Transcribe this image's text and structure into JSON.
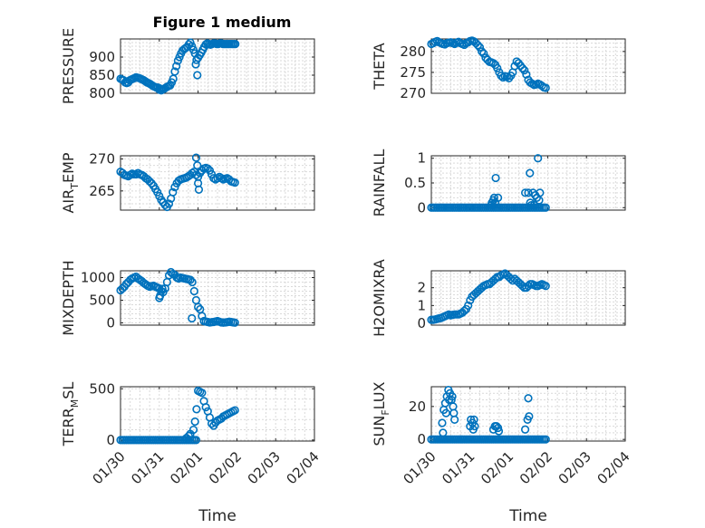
{
  "figure_title": "Figure 1 medium",
  "colors": {
    "marker": "#0072BD",
    "axis": "#262626",
    "grid": "#d9d9d9"
  },
  "chart_data": [
    {
      "type": "scatter",
      "name": "pressure",
      "ylabel": "PRESSURE",
      "xlabel": "",
      "xlim": [
        0,
        5
      ],
      "ylim": [
        800,
        950
      ],
      "yticks": [
        800,
        850,
        900
      ],
      "ytick_labels": [
        "800",
        "850",
        "900"
      ],
      "xticks": [
        0,
        1,
        2,
        3,
        4,
        5
      ],
      "xtick_labels": [],
      "x": [
        0,
        0.04,
        0.08,
        0.12,
        0.16,
        0.2,
        0.24,
        0.28,
        0.32,
        0.36,
        0.4,
        0.44,
        0.48,
        0.52,
        0.56,
        0.6,
        0.64,
        0.68,
        0.72,
        0.76,
        0.8,
        0.84,
        0.88,
        0.92,
        0.96,
        1.0,
        1.04,
        1.08,
        1.12,
        1.16,
        1.2,
        1.24,
        1.28,
        1.32,
        1.36,
        1.4,
        1.44,
        1.48,
        1.52,
        1.56,
        1.6,
        1.64,
        1.68,
        1.72,
        1.76,
        1.8,
        1.84,
        1.88,
        1.92,
        1.96,
        2.0,
        2.04,
        2.08,
        2.12,
        2.16,
        2.2,
        2.24,
        2.28,
        2.32,
        2.36,
        2.4,
        2.44,
        2.48,
        2.52,
        2.56,
        2.6,
        2.64,
        2.68,
        2.72,
        2.76,
        2.8,
        2.84,
        2.88,
        2.92,
        2.96,
        1.94,
        1.98,
        1.0,
        1.05
      ],
      "y": [
        840,
        838,
        836,
        830,
        828,
        830,
        836,
        838,
        840,
        842,
        844,
        843,
        842,
        840,
        838,
        836,
        833,
        830,
        828,
        826,
        823,
        820,
        818,
        816,
        816,
        814,
        812,
        810,
        812,
        815,
        818,
        820,
        822,
        830,
        840,
        860,
        875,
        890,
        900,
        910,
        918,
        922,
        925,
        928,
        935,
        940,
        930,
        920,
        910,
        892,
        898,
        905,
        912,
        920,
        928,
        935,
        938,
        936,
        934,
        936,
        938,
        938,
        936,
        936,
        938,
        938,
        936,
        936,
        936,
        936,
        936,
        936,
        936,
        936,
        936,
        880,
        850,
        810,
        808
      ]
    },
    {
      "type": "scatter",
      "name": "theta",
      "ylabel": "THETA",
      "xlabel": "",
      "xlim": [
        0,
        5
      ],
      "ylim": [
        270,
        283
      ],
      "yticks": [
        270,
        275,
        280
      ],
      "ytick_labels": [
        "270",
        "275",
        "280"
      ],
      "xticks": [
        0,
        1,
        2,
        3,
        4,
        5
      ],
      "xtick_labels": [],
      "x": [
        0,
        0.05,
        0.1,
        0.15,
        0.2,
        0.25,
        0.3,
        0.35,
        0.4,
        0.45,
        0.5,
        0.55,
        0.6,
        0.65,
        0.7,
        0.75,
        0.8,
        0.85,
        0.9,
        0.95,
        1.0,
        1.05,
        1.1,
        1.15,
        1.2,
        1.25,
        1.3,
        1.35,
        1.4,
        1.45,
        1.5,
        1.55,
        1.6,
        1.65,
        1.7,
        1.75,
        1.8,
        1.85,
        1.9,
        1.95,
        2.0,
        2.05,
        2.1,
        2.15,
        2.2,
        2.25,
        2.3,
        2.35,
        2.4,
        2.45,
        2.5,
        2.55,
        2.6,
        2.65,
        2.7,
        2.75,
        2.8,
        2.85,
        2.9,
        2.95
      ],
      "y": [
        281.8,
        282.0,
        282.3,
        282.5,
        282.2,
        282.0,
        281.8,
        281.7,
        282.0,
        282.1,
        282.2,
        282.0,
        281.8,
        282.1,
        282.3,
        282.0,
        281.8,
        281.6,
        282.0,
        282.2,
        282.5,
        282.6,
        282.4,
        282.0,
        281.5,
        281.0,
        280.0,
        279.5,
        278.5,
        278.0,
        277.5,
        277.4,
        277.2,
        276.8,
        276.0,
        275.0,
        274.2,
        273.8,
        274.1,
        274.0,
        273.6,
        274.2,
        275.0,
        276.5,
        277.6,
        277.2,
        276.6,
        276.0,
        275.5,
        274.5,
        273.2,
        272.6,
        272.3,
        272.0,
        272.1,
        272.3,
        272.1,
        271.8,
        271.4,
        271.3
      ]
    },
    {
      "type": "scatter",
      "name": "air-temp",
      "ylabel": "AIR_TEMP",
      "ylabel_main": "AIR",
      "ylabel_sub": "T",
      "ylabel_tail": "EMP",
      "xlabel": "",
      "xlim": [
        0,
        5
      ],
      "ylim": [
        262,
        270.5
      ],
      "yticks": [
        265,
        270
      ],
      "ytick_labels": [
        "265",
        "270"
      ],
      "xticks": [
        0,
        1,
        2,
        3,
        4,
        5
      ],
      "xtick_labels": [],
      "x": [
        0,
        0.05,
        0.1,
        0.15,
        0.2,
        0.25,
        0.3,
        0.35,
        0.4,
        0.45,
        0.5,
        0.55,
        0.6,
        0.65,
        0.7,
        0.75,
        0.8,
        0.85,
        0.9,
        0.95,
        1.0,
        1.05,
        1.1,
        1.15,
        1.2,
        1.25,
        1.3,
        1.35,
        1.4,
        1.45,
        1.5,
        1.55,
        1.6,
        1.65,
        1.7,
        1.75,
        1.8,
        1.85,
        1.9,
        1.95,
        2.0,
        2.05,
        2.1,
        2.15,
        2.2,
        2.25,
        2.3,
        2.35,
        2.4,
        2.45,
        2.5,
        2.55,
        2.6,
        2.65,
        2.7,
        2.75,
        2.8,
        2.85,
        2.9,
        2.95,
        1.95,
        1.98,
        2.0,
        2.02
      ],
      "y": [
        268.0,
        267.8,
        267.5,
        267.4,
        267.3,
        267.5,
        267.7,
        267.6,
        267.6,
        267.8,
        267.6,
        267.5,
        267.3,
        267.0,
        266.8,
        266.5,
        266.2,
        265.8,
        265.3,
        264.8,
        264.2,
        263.6,
        263.2,
        262.8,
        262.5,
        263.0,
        263.8,
        264.8,
        265.6,
        266.2,
        266.6,
        266.8,
        266.9,
        267.0,
        267.1,
        267.3,
        267.5,
        267.8,
        268.0,
        267.5,
        267.2,
        267.8,
        268.2,
        268.5,
        268.6,
        268.5,
        268.2,
        267.6,
        267.0,
        266.8,
        267.0,
        267.2,
        267.0,
        266.8,
        266.9,
        267.0,
        266.8,
        266.5,
        266.4,
        266.3,
        270.2,
        269.0,
        266.2,
        265.2
      ]
    },
    {
      "type": "scatter",
      "name": "rainfall",
      "ylabel": "RAINFALL",
      "xlabel": "",
      "xlim": [
        0,
        5
      ],
      "ylim": [
        -0.05,
        1.05
      ],
      "yticks": [
        0,
        0.5,
        1
      ],
      "ytick_labels": [
        "0",
        "0.5",
        "1"
      ],
      "xticks": [
        0,
        1,
        2,
        3,
        4,
        5
      ],
      "xtick_labels": [],
      "x": [
        0,
        0.05,
        0.1,
        0.15,
        0.2,
        0.25,
        0.3,
        0.35,
        0.4,
        0.45,
        0.5,
        0.55,
        0.6,
        0.65,
        0.7,
        0.75,
        0.8,
        0.85,
        0.9,
        0.95,
        1.0,
        1.05,
        1.1,
        1.15,
        1.2,
        1.25,
        1.3,
        1.35,
        1.4,
        1.45,
        1.5,
        1.55,
        1.6,
        1.65,
        1.7,
        1.75,
        1.8,
        1.85,
        1.9,
        1.95,
        2.0,
        2.05,
        2.1,
        2.15,
        2.2,
        2.25,
        2.3,
        2.35,
        2.4,
        2.45,
        2.5,
        2.55,
        2.6,
        2.65,
        2.7,
        2.75,
        2.8,
        2.85,
        2.9,
        2.95,
        1.56,
        1.62,
        1.66,
        1.72,
        1.55,
        1.6,
        1.65,
        2.42,
        2.5,
        2.54,
        2.58,
        2.62,
        2.68,
        2.75,
        2.78,
        2.55,
        2.65,
        2.72,
        2.8
      ],
      "y": [
        0,
        0,
        0,
        0,
        0,
        0,
        0,
        0,
        0,
        0,
        0,
        0,
        0,
        0,
        0,
        0,
        0,
        0,
        0,
        0,
        0,
        0,
        0,
        0,
        0,
        0,
        0,
        0,
        0,
        0,
        0,
        0,
        0,
        0,
        0,
        0,
        0,
        0,
        0,
        0,
        0,
        0,
        0,
        0,
        0,
        0,
        0,
        0,
        0,
        0,
        0,
        0,
        0,
        0,
        0,
        0,
        0,
        0,
        0,
        0,
        0.1,
        0.2,
        0.6,
        0.2,
        0.05,
        0.15,
        0.1,
        0.3,
        0.3,
        0.7,
        0.05,
        0.3,
        0.25,
        1.0,
        0.15,
        0.1,
        0.05,
        0.2,
        0.3
      ]
    },
    {
      "type": "scatter",
      "name": "mixdepth",
      "ylabel": "MIXDEPTH",
      "xlabel": "",
      "xlim": [
        0,
        5
      ],
      "ylim": [
        -50,
        1150
      ],
      "yticks": [
        0,
        500,
        1000
      ],
      "ytick_labels": [
        "0",
        "500",
        "1000"
      ],
      "xticks": [
        0,
        1,
        2,
        3,
        4,
        5
      ],
      "xtick_labels": [],
      "x": [
        0,
        0.05,
        0.1,
        0.15,
        0.2,
        0.25,
        0.3,
        0.35,
        0.4,
        0.45,
        0.5,
        0.55,
        0.6,
        0.65,
        0.7,
        0.75,
        0.8,
        0.85,
        0.9,
        0.95,
        1.0,
        1.05,
        1.1,
        1.15,
        1.2,
        1.25,
        1.3,
        1.35,
        1.4,
        1.45,
        1.5,
        1.55,
        1.6,
        1.65,
        1.7,
        1.75,
        1.8,
        1.85,
        1.9,
        1.95,
        2.0,
        2.05,
        2.1,
        2.15,
        2.2,
        2.25,
        2.3,
        2.35,
        2.4,
        2.45,
        2.5,
        2.55,
        2.6,
        2.65,
        2.7,
        2.75,
        2.8,
        2.85,
        2.9,
        2.95,
        1.0,
        1.02,
        1.08,
        1.84
      ],
      "y": [
        720,
        760,
        800,
        860,
        900,
        950,
        980,
        1000,
        1020,
        980,
        950,
        920,
        880,
        850,
        820,
        800,
        810,
        820,
        800,
        780,
        760,
        700,
        680,
        760,
        900,
        1050,
        1120,
        1080,
        1060,
        1000,
        980,
        1000,
        990,
        980,
        970,
        960,
        950,
        900,
        700,
        500,
        350,
        300,
        150,
        40,
        30,
        20,
        10,
        15,
        20,
        30,
        40,
        25,
        10,
        5,
        10,
        15,
        25,
        20,
        10,
        5,
        550,
        600,
        750,
        100
      ]
    },
    {
      "type": "scatter",
      "name": "h2omixra",
      "ylabel": "H2OMIXRA",
      "xlabel": "",
      "xlim": [
        0,
        5
      ],
      "ylim": [
        -0.1,
        2.95
      ],
      "yticks": [
        0,
        1,
        2
      ],
      "ytick_labels": [
        "0",
        "1",
        "2"
      ],
      "xticks": [
        0,
        1,
        2,
        3,
        4,
        5
      ],
      "xtick_labels": [],
      "x": [
        0,
        0.05,
        0.1,
        0.15,
        0.2,
        0.25,
        0.3,
        0.35,
        0.4,
        0.45,
        0.5,
        0.55,
        0.6,
        0.65,
        0.7,
        0.75,
        0.8,
        0.85,
        0.9,
        0.95,
        1.0,
        1.05,
        1.1,
        1.15,
        1.2,
        1.25,
        1.3,
        1.35,
        1.4,
        1.45,
        1.5,
        1.55,
        1.6,
        1.65,
        1.7,
        1.75,
        1.8,
        1.85,
        1.9,
        1.95,
        2.0,
        2.05,
        2.1,
        2.15,
        2.2,
        2.25,
        2.3,
        2.35,
        2.4,
        2.45,
        2.5,
        2.55,
        2.6,
        2.65,
        2.7,
        2.75,
        2.8,
        2.85,
        2.9,
        2.95
      ],
      "y": [
        0.2,
        0.2,
        0.22,
        0.25,
        0.28,
        0.3,
        0.35,
        0.4,
        0.45,
        0.5,
        0.45,
        0.48,
        0.5,
        0.5,
        0.5,
        0.55,
        0.6,
        0.7,
        0.8,
        1.0,
        1.3,
        1.5,
        1.6,
        1.7,
        1.8,
        1.9,
        2.0,
        2.1,
        2.15,
        2.2,
        2.2,
        2.3,
        2.4,
        2.5,
        2.6,
        2.6,
        2.7,
        2.75,
        2.8,
        2.7,
        2.6,
        2.5,
        2.4,
        2.5,
        2.4,
        2.3,
        2.2,
        2.1,
        2.0,
        2.0,
        2.1,
        2.2,
        2.2,
        2.15,
        2.1,
        2.1,
        2.15,
        2.2,
        2.15,
        2.1
      ]
    },
    {
      "type": "scatter",
      "name": "terr-msl",
      "ylabel": "TERR_MSL",
      "ylabel_main": "TERR",
      "ylabel_sub": "M",
      "ylabel_tail": "SL",
      "xlabel": "Time",
      "xlim": [
        0,
        5
      ],
      "ylim": [
        -10,
        520
      ],
      "yticks": [
        0,
        500
      ],
      "ytick_labels": [
        "0",
        "500"
      ],
      "xticks": [
        0,
        1,
        2,
        3,
        4,
        5
      ],
      "xtick_labels": [
        "01/30",
        "01/31",
        "02/01",
        "02/02",
        "02/03",
        "02/04"
      ],
      "x": [
        0,
        0.05,
        0.1,
        0.15,
        0.2,
        0.25,
        0.3,
        0.35,
        0.4,
        0.45,
        0.5,
        0.55,
        0.6,
        0.65,
        0.7,
        0.75,
        0.8,
        0.85,
        0.9,
        0.95,
        1.0,
        1.05,
        1.1,
        1.15,
        1.2,
        1.25,
        1.3,
        1.35,
        1.4,
        1.45,
        1.5,
        1.55,
        1.6,
        1.65,
        1.7,
        1.75,
        1.8,
        1.85,
        1.9,
        1.95,
        2.0,
        2.05,
        2.1,
        2.15,
        2.2,
        2.25,
        2.3,
        2.35,
        2.4,
        2.45,
        2.5,
        2.55,
        2.6,
        2.65,
        2.7,
        2.75,
        2.8,
        2.85,
        2.9,
        2.95,
        1.7,
        1.76,
        1.8,
        1.88,
        1.92,
        1.96
      ],
      "y": [
        0,
        0,
        0,
        0,
        0,
        0,
        0,
        0,
        0,
        0,
        0,
        0,
        0,
        0,
        0,
        0,
        0,
        0,
        0,
        0,
        0,
        0,
        0,
        0,
        0,
        0,
        0,
        0,
        0,
        0,
        0,
        0,
        0,
        0,
        0,
        0,
        0,
        0,
        0,
        0,
        480,
        470,
        460,
        380,
        320,
        280,
        220,
        160,
        140,
        170,
        190,
        200,
        210,
        230,
        240,
        250,
        260,
        270,
        280,
        290,
        20,
        40,
        60,
        100,
        180,
        300
      ]
    },
    {
      "type": "scatter",
      "name": "sun-flux",
      "ylabel": "SUN_FLUX",
      "ylabel_main": "SUN",
      "ylabel_sub": "F",
      "ylabel_tail": "LUX",
      "xlabel": "Time",
      "xlim": [
        0,
        5
      ],
      "ylim": [
        -1,
        32
      ],
      "yticks": [
        0,
        20
      ],
      "ytick_labels": [
        "0",
        "20"
      ],
      "xticks": [
        0,
        1,
        2,
        3,
        4,
        5
      ],
      "xtick_labels": [
        "01/30",
        "01/31",
        "02/01",
        "02/02",
        "02/03",
        "02/04"
      ],
      "x": [
        0,
        0.05,
        0.1,
        0.15,
        0.2,
        0.25,
        0.3,
        0.35,
        0.4,
        0.45,
        0.5,
        0.55,
        0.6,
        0.65,
        0.7,
        0.75,
        0.8,
        0.85,
        0.9,
        0.95,
        1.0,
        1.05,
        1.1,
        1.15,
        1.2,
        1.25,
        1.3,
        1.35,
        1.4,
        1.45,
        1.5,
        1.55,
        1.6,
        1.65,
        1.7,
        1.75,
        1.8,
        1.85,
        1.9,
        1.95,
        2.0,
        2.05,
        2.1,
        2.15,
        2.2,
        2.25,
        2.3,
        2.35,
        2.4,
        2.45,
        2.5,
        2.55,
        2.6,
        2.65,
        2.7,
        2.75,
        2.8,
        2.85,
        2.9,
        2.95,
        0.28,
        0.32,
        0.36,
        0.4,
        0.44,
        0.48,
        0.52,
        0.56,
        0.6,
        0.3,
        0.38,
        0.46,
        0.54,
        0.58,
        1.0,
        1.08,
        1.02,
        1.06,
        1.1,
        1.12,
        1.6,
        1.64,
        1.68,
        1.72,
        1.74,
        2.42,
        2.48,
        2.5,
        2.52
      ],
      "y": [
        0,
        0,
        0,
        0,
        0,
        0,
        0,
        0,
        0,
        0,
        0,
        0,
        0,
        0,
        0,
        0,
        0,
        0,
        0,
        0,
        0,
        0,
        0,
        0,
        0,
        0,
        0,
        0,
        0,
        0,
        0,
        0,
        0,
        0,
        0,
        0,
        0,
        0,
        0,
        0,
        0,
        0,
        0,
        0,
        0,
        0,
        0,
        0,
        0,
        0,
        0,
        0,
        0,
        0,
        0,
        0,
        0,
        0,
        0,
        0,
        10,
        18,
        22,
        26,
        30,
        28,
        24,
        20,
        12,
        4,
        16,
        24,
        26,
        16,
        8,
        6,
        12,
        10,
        12,
        8,
        6,
        8,
        8,
        7,
        5,
        6,
        12,
        25,
        14
      ]
    }
  ]
}
